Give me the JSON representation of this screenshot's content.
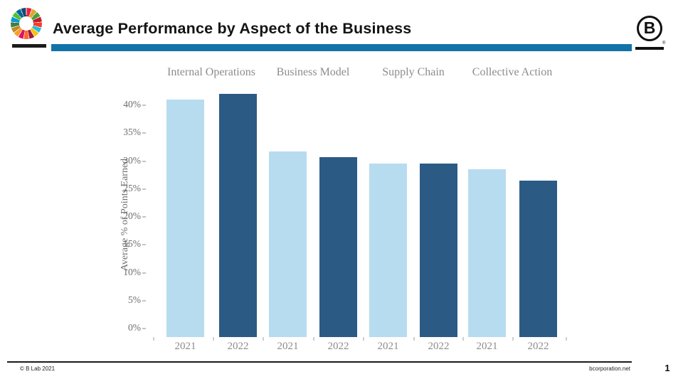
{
  "header": {
    "title": "Average Performance by Aspect of the Business",
    "accent_bar_color": "#1273A9",
    "sdg_wheel_colors": [
      "#E5243B",
      "#DDA63A",
      "#4C9F38",
      "#C5192D",
      "#FF3A21",
      "#26BDE2",
      "#FCC30B",
      "#A21942",
      "#FD6925",
      "#DD1367",
      "#FD9D24",
      "#BF8B2E",
      "#3F7E44",
      "#0A97D9",
      "#56C02B",
      "#00689D",
      "#19486A"
    ],
    "b_logo_letter": "B",
    "b_logo_registered": "®"
  },
  "chart_data": {
    "type": "bar",
    "title": "Average Performance by Aspect of the Business",
    "xlabel": "",
    "ylabel": "Average % of Points Earned",
    "unit": "%",
    "ylim": [
      0,
      45
    ],
    "yticks": [
      "0%",
      "5%",
      "10%",
      "15%",
      "20%",
      "25%",
      "30%",
      "35%",
      "40%"
    ],
    "grid": "off",
    "legend": "none",
    "categories": [
      "Internal Operations",
      "Business Model",
      "Supply Chain",
      "Collective Action"
    ],
    "series": [
      {
        "name": "2021",
        "color": "#B8DCEF",
        "values": [
          41,
          32,
          30,
          29
        ]
      },
      {
        "name": "2022",
        "color": "#2B5B85",
        "values": [
          42,
          31,
          30,
          27
        ]
      }
    ]
  },
  "footer": {
    "copyright": "© B Lab 2021",
    "website": "bcorporation.net",
    "page_number": "1"
  }
}
